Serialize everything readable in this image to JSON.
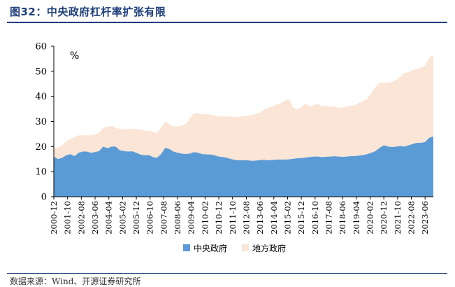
{
  "figure": {
    "title": "图32：中央政府杠杆率扩张有限",
    "source": "数据来源：Wind、开源证券研究所"
  },
  "chart_data": {
    "type": "area",
    "stacked": true,
    "unit_label": "%",
    "ylim": [
      0,
      60
    ],
    "yticks": [
      0,
      10,
      20,
      30,
      40,
      50,
      60
    ],
    "xtick_labels": [
      "2000-12",
      "2001-10",
      "2002-08",
      "2003-06",
      "2004-04",
      "2005-02",
      "2005-12",
      "2006-10",
      "2007-08",
      "2008-06",
      "2009-04",
      "2010-02",
      "2010-12",
      "2011-10",
      "2012-08",
      "2013-06",
      "2014-04",
      "2015-02",
      "2015-12",
      "2016-10",
      "2017-08",
      "2018-06",
      "2019-04",
      "2020-02",
      "2020-12",
      "2021-10",
      "2022-08",
      "2023-06"
    ],
    "x": [
      "2000-12",
      "2001-03",
      "2001-06",
      "2001-09",
      "2001-12",
      "2002-03",
      "2002-06",
      "2002-09",
      "2002-12",
      "2003-03",
      "2003-06",
      "2003-09",
      "2003-12",
      "2004-03",
      "2004-06",
      "2004-09",
      "2004-12",
      "2005-03",
      "2005-06",
      "2005-09",
      "2005-12",
      "2006-03",
      "2006-06",
      "2006-09",
      "2006-12",
      "2007-03",
      "2007-06",
      "2007-09",
      "2007-12",
      "2008-03",
      "2008-06",
      "2008-09",
      "2008-12",
      "2009-03",
      "2009-06",
      "2009-09",
      "2009-12",
      "2010-03",
      "2010-06",
      "2010-09",
      "2010-12",
      "2011-03",
      "2011-06",
      "2011-09",
      "2011-12",
      "2012-03",
      "2012-06",
      "2012-09",
      "2012-12",
      "2013-03",
      "2013-06",
      "2013-09",
      "2013-12",
      "2014-03",
      "2014-06",
      "2014-09",
      "2014-12",
      "2015-03",
      "2015-06",
      "2015-09",
      "2015-12",
      "2016-03",
      "2016-06",
      "2016-09",
      "2016-12",
      "2017-03",
      "2017-06",
      "2017-09",
      "2017-12",
      "2018-03",
      "2018-06",
      "2018-09",
      "2018-12",
      "2019-03",
      "2019-06",
      "2019-09",
      "2019-12",
      "2020-03",
      "2020-06",
      "2020-09",
      "2020-12",
      "2021-03",
      "2021-06",
      "2021-09",
      "2021-12",
      "2022-03",
      "2022-06",
      "2022-09",
      "2022-12",
      "2023-03",
      "2023-06",
      "2023-09",
      "2023-12"
    ],
    "series": [
      {
        "name": "中央政府",
        "color": "#5b9bd5",
        "values": [
          16,
          15,
          15.5,
          16.5,
          17,
          16.2,
          17.5,
          18,
          18,
          17.5,
          17.8,
          18.2,
          20,
          19.3,
          20,
          20,
          18.5,
          18.2,
          18,
          18.1,
          17.5,
          16.8,
          16.5,
          16.6,
          15.8,
          15.5,
          17,
          19.5,
          19,
          18,
          17.5,
          17.2,
          17,
          17.2,
          17.8,
          17.5,
          17,
          16.9,
          16.8,
          16.5,
          16,
          15.8,
          15.5,
          15,
          14.6,
          14.5,
          14.5,
          14.5,
          14.3,
          14.4,
          14.6,
          14.7,
          14.5,
          14.6,
          14.8,
          14.8,
          14.8,
          14.9,
          15.1,
          15.3,
          15.4,
          15.6,
          15.8,
          16,
          16,
          15.8,
          15.9,
          16,
          16.1,
          16,
          15.9,
          16,
          16.2,
          16.2,
          16.4,
          16.6,
          17,
          17.5,
          18.2,
          19.5,
          20.5,
          20,
          19.8,
          20,
          20.2,
          20,
          20.5,
          21,
          21.5,
          21.5,
          21.8,
          23.5,
          24
        ]
      },
      {
        "name": "地方政府",
        "color": "#fbe5d6",
        "values": [
          3.5,
          4.5,
          5,
          5.5,
          6,
          7.5,
          7,
          6.5,
          6.5,
          7,
          7,
          7.3,
          7.5,
          8.5,
          8.3,
          7.5,
          8.5,
          8.7,
          9,
          9,
          9.5,
          10,
          9.8,
          9.8,
          10,
          10,
          10.5,
          10.5,
          10,
          10,
          10.5,
          11.2,
          12,
          14,
          15.5,
          15.7,
          15.9,
          16,
          16,
          15.8,
          16,
          16.2,
          16.5,
          17,
          17.2,
          17.4,
          17.7,
          17.8,
          18.2,
          18.6,
          19,
          20,
          21,
          21.4,
          22,
          22.5,
          23.5,
          24,
          20.5,
          19.5,
          20.3,
          21.5,
          20.2,
          20.5,
          21,
          20.3,
          20.2,
          20,
          19.8,
          19.5,
          19.6,
          20,
          20,
          20.3,
          21,
          21.5,
          22,
          24,
          25.5,
          26,
          25,
          25.5,
          26,
          26.5,
          27.5,
          29.5,
          29,
          29.5,
          29.5,
          30,
          30.2,
          32,
          32.5
        ]
      }
    ],
    "legend_position": "bottom",
    "grid": false
  }
}
